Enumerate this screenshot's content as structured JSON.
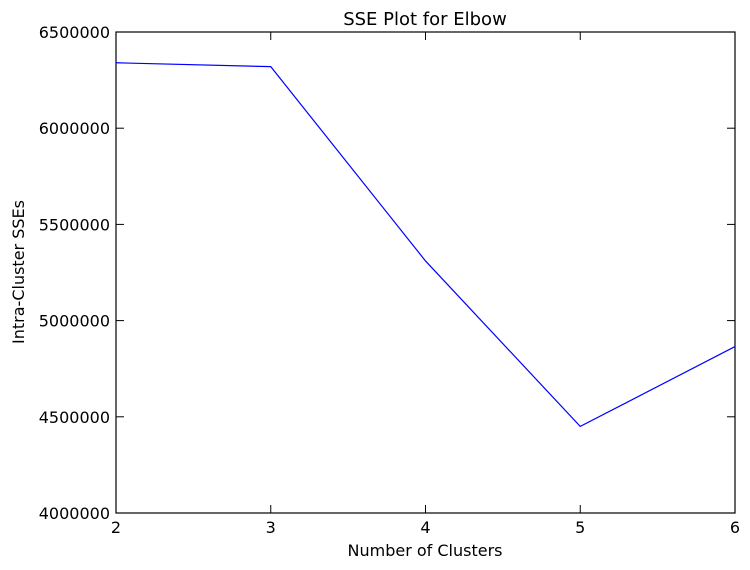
{
  "chart_data": {
    "type": "line",
    "title": "SSE Plot for Elbow",
    "xlabel": "Number of Clusters",
    "ylabel": "Intra-Cluster SSEs",
    "xlim": [
      2,
      6
    ],
    "ylim": [
      4000000,
      6500000
    ],
    "xticks": [
      2,
      3,
      4,
      5,
      6
    ],
    "yticks": [
      4000000,
      4500000,
      5000000,
      5500000,
      6000000,
      6500000
    ],
    "xtick_labels": [
      "2",
      "3",
      "4",
      "5",
      "6"
    ],
    "ytick_labels": [
      "4000000",
      "4500000",
      "5000000",
      "5500000",
      "6000000",
      "6500000"
    ],
    "grid": false,
    "series": [
      {
        "color": "#0000ff",
        "x": [
          2,
          3,
          4,
          5,
          6
        ],
        "y": [
          6340000,
          6320000,
          5310000,
          4450000,
          4865000
        ]
      }
    ]
  }
}
